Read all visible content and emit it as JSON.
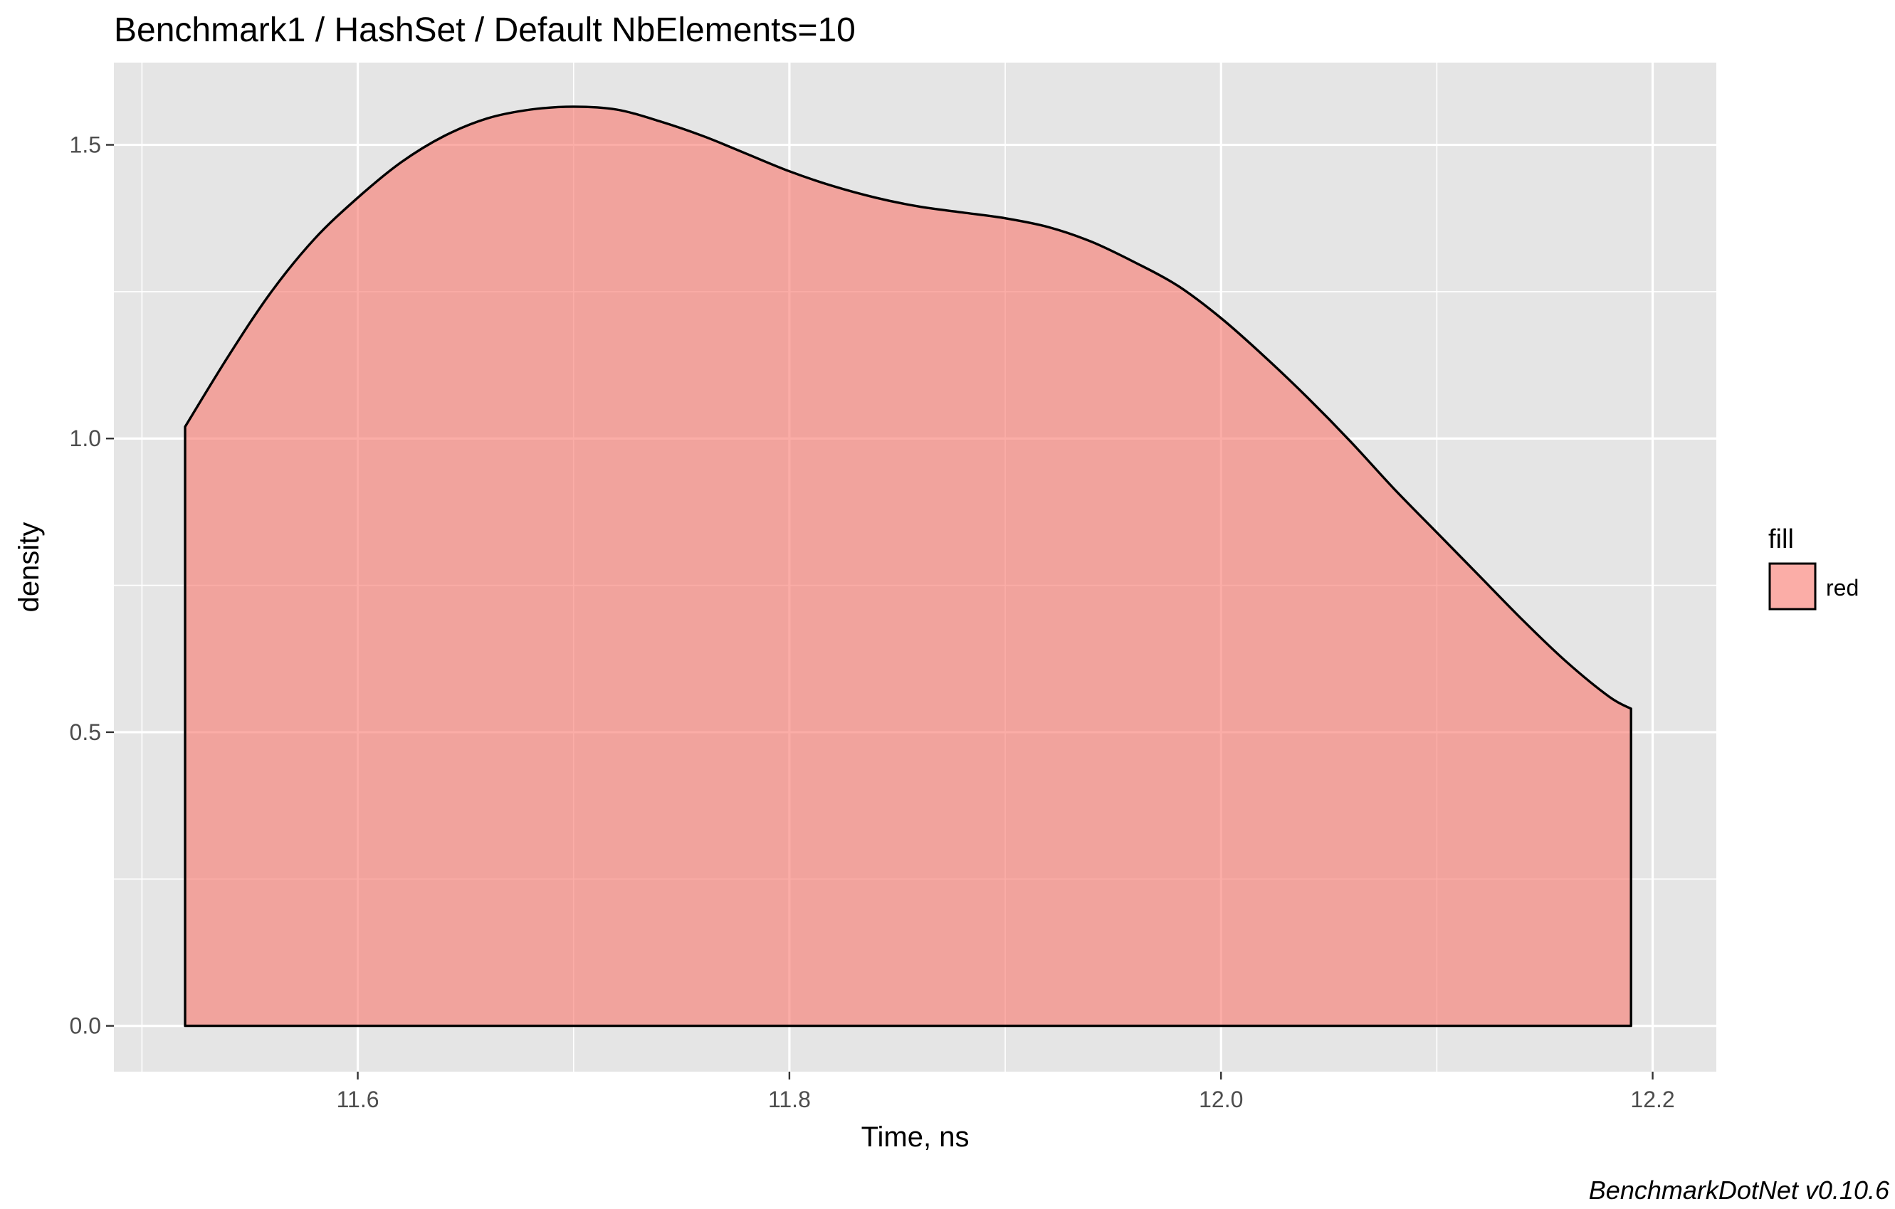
{
  "chart_data": {
    "type": "area",
    "title": "Benchmark1 / HashSet / Default NbElements=10",
    "xlabel": "Time, ns",
    "ylabel": "density",
    "caption": "BenchmarkDotNet v0.10.6",
    "xlim": [
      11.487,
      12.2295
    ],
    "ylim": [
      -0.078,
      1.64
    ],
    "x_ticks": [
      11.6,
      11.8,
      12.0,
      12.2
    ],
    "x_tick_labels": [
      "11.6",
      "11.8",
      "12.0",
      "12.2"
    ],
    "x_minor_ticks": [
      11.5,
      11.7,
      11.9,
      12.1
    ],
    "y_ticks": [
      0.0,
      0.5,
      1.0,
      1.5
    ],
    "y_tick_labels": [
      "0.0",
      "0.5",
      "1.0",
      "1.5"
    ],
    "y_minor_ticks": [
      0.25,
      0.75,
      1.25
    ],
    "grid": true,
    "legend": {
      "position": "right",
      "title": "fill",
      "entries": [
        "red"
      ]
    },
    "colors": {
      "panel": "#e5e5e5",
      "grid": "#ffffff",
      "fill": "#F8766D",
      "fill_alpha": 0.6,
      "outline": "#000000"
    },
    "series": [
      {
        "name": "red",
        "x": [
          11.52,
          11.54,
          11.56,
          11.58,
          11.6,
          11.62,
          11.64,
          11.66,
          11.68,
          11.7,
          11.72,
          11.74,
          11.76,
          11.78,
          11.8,
          11.82,
          11.84,
          11.86,
          11.88,
          11.9,
          11.92,
          11.94,
          11.96,
          11.98,
          12.0,
          12.02,
          12.04,
          12.06,
          12.08,
          12.1,
          12.12,
          12.14,
          12.16,
          12.18,
          12.19
        ],
        "y": [
          1.02,
          1.14,
          1.25,
          1.34,
          1.41,
          1.47,
          1.515,
          1.545,
          1.56,
          1.565,
          1.56,
          1.54,
          1.515,
          1.485,
          1.455,
          1.43,
          1.41,
          1.395,
          1.385,
          1.375,
          1.36,
          1.335,
          1.3,
          1.26,
          1.205,
          1.14,
          1.07,
          0.995,
          0.915,
          0.84,
          0.765,
          0.69,
          0.62,
          0.56,
          0.54
        ]
      }
    ]
  }
}
